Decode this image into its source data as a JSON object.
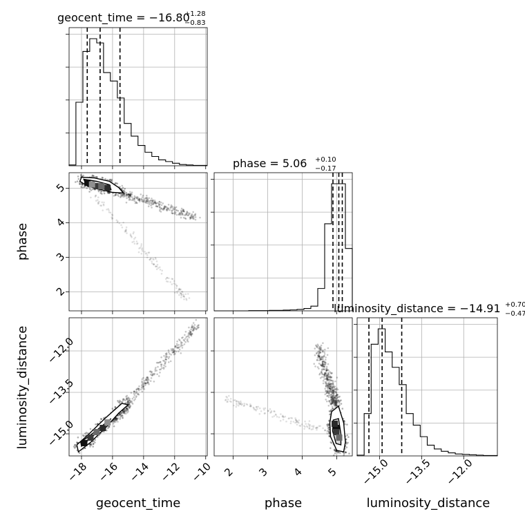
{
  "chart_data": {
    "type": "corner",
    "parameters": [
      "geocent_time",
      "phase",
      "luminosity_distance"
    ],
    "titles": [
      {
        "param": "geocent_time",
        "text": "geocent_time = −16.80",
        "plus": "+1.28",
        "minus": "−0.83"
      },
      {
        "param": "phase",
        "text": "phase = 5.06",
        "plus": "+0.10",
        "minus": "−0.17"
      },
      {
        "param": "luminosity_distance",
        "text": "luminosity_distance = −14.91",
        "plus": "+0.70",
        "minus": "−0.47"
      }
    ],
    "axis_labels": {
      "x": [
        "geocent_time",
        "phase",
        "luminosity_distance"
      ],
      "y": [
        "phase",
        "luminosity_distance"
      ]
    },
    "ranges": {
      "geocent_time": [
        -18.8,
        -9.9
      ],
      "phase": [
        1.45,
        5.45
      ],
      "luminosity_distance": [
        -15.8,
        -10.8
      ]
    },
    "ticks": {
      "geocent_time": [
        "−18",
        "−16",
        "−14",
        "−12",
        "−10"
      ],
      "phase_x": [
        "2",
        "3",
        "4",
        "5"
      ],
      "phase_y": [
        "2",
        "3",
        "4",
        "5"
      ],
      "luminosity_distance_x": [
        "−15.0",
        "−13.5",
        "−12.0"
      ],
      "luminosity_distance_y": [
        "−12.0",
        "−13.5",
        "−15.0"
      ]
    },
    "tick_values": {
      "geocent_time": [
        -18,
        -16,
        -14,
        -12,
        -10
      ],
      "phase": [
        2,
        3,
        4,
        5
      ],
      "luminosity_distance": [
        -15.0,
        -13.5,
        -12.0
      ]
    },
    "quantiles": {
      "geocent_time": [
        -17.63,
        -16.8,
        -15.52
      ],
      "phase": [
        4.89,
        5.06,
        5.16
      ],
      "luminosity_distance": [
        -15.38,
        -14.91,
        -14.21
      ]
    },
    "histograms": {
      "geocent_time": {
        "edges": [
          -18.8,
          -18.36,
          -17.91,
          -17.47,
          -17.02,
          -16.58,
          -16.14,
          -15.69,
          -15.25,
          -14.8,
          -14.36,
          -13.91,
          -13.47,
          -13.03,
          -12.58,
          -12.14,
          -11.69,
          -11.25,
          -10.81,
          -10.36,
          -9.92
        ],
        "counts": [
          2,
          150,
          270,
          300,
          290,
          220,
          200,
          160,
          100,
          70,
          48,
          32,
          22,
          14,
          10,
          6,
          3,
          2,
          1,
          1
        ]
      },
      "phase": {
        "edges": [
          1.45,
          1.65,
          1.85,
          2.05,
          2.25,
          2.45,
          2.65,
          2.85,
          3.05,
          3.25,
          3.45,
          3.65,
          3.85,
          4.05,
          4.25,
          4.45,
          4.65,
          4.85,
          5.05,
          5.25,
          5.45
        ],
        "counts": [
          0,
          0,
          0,
          0,
          0,
          1,
          1,
          1,
          2,
          2,
          3,
          4,
          6,
          10,
          20,
          95,
          370,
          540,
          540,
          265
        ]
      },
      "luminosity_distance": {
        "edges": [
          -15.8,
          -15.55,
          -15.3,
          -15.05,
          -14.8,
          -14.55,
          -14.3,
          -14.05,
          -13.8,
          -13.55,
          -13.3,
          -13.05,
          -12.8,
          -12.55,
          -12.3,
          -12.05,
          -11.8,
          -11.55,
          -11.3,
          -11.05,
          -10.8
        ],
        "counts": [
          2,
          110,
          290,
          330,
          270,
          230,
          185,
          110,
          80,
          50,
          28,
          18,
          12,
          8,
          5,
          4,
          3,
          2,
          1,
          1
        ]
      }
    },
    "density_2d": [
      {
        "x": "geocent_time",
        "y": "phase",
        "core": [
          [
            -17.6,
            5.15
          ],
          [
            -17.0,
            5.05
          ],
          [
            -16.7,
            5.05
          ],
          [
            -16.3,
            5.0
          ],
          [
            -17.3,
            5.1
          ]
        ],
        "contour_outer": [
          [
            -18.0,
            5.32
          ],
          [
            -17.2,
            5.3
          ],
          [
            -16.2,
            5.2
          ],
          [
            -15.6,
            5.02
          ],
          [
            -15.3,
            4.86
          ],
          [
            -16.0,
            4.88
          ],
          [
            -16.9,
            4.98
          ],
          [
            -17.6,
            5.06
          ],
          [
            -18.1,
            5.2
          ]
        ],
        "contour_inner": [
          [
            -17.85,
            5.26
          ],
          [
            -17.0,
            5.2
          ],
          [
            -16.2,
            5.1
          ],
          [
            -16.1,
            4.96
          ],
          [
            -16.9,
            5.0
          ],
          [
            -17.7,
            5.1
          ]
        ],
        "tail": {
          "from": [
            -17.0,
            5.1
          ],
          "to": [
            -10.6,
            4.15
          ]
        },
        "tail2": {
          "from": [
            -17.2,
            4.8
          ],
          "to": [
            -11.2,
            1.75
          ]
        }
      },
      {
        "x": "geocent_time",
        "y": "luminosity_distance",
        "core": [
          [
            -17.8,
            -15.35
          ],
          [
            -17.4,
            -15.15
          ],
          [
            -17.0,
            -14.95
          ],
          [
            -16.6,
            -14.8
          ],
          [
            -16.3,
            -14.6
          ]
        ],
        "contour_outer": [
          [
            -18.2,
            -15.65
          ],
          [
            -17.4,
            -15.3
          ],
          [
            -16.4,
            -14.75
          ],
          [
            -15.6,
            -14.25
          ],
          [
            -15.0,
            -13.95
          ],
          [
            -15.4,
            -13.9
          ],
          [
            -16.5,
            -14.45
          ],
          [
            -17.6,
            -15.05
          ],
          [
            -18.3,
            -15.4
          ]
        ],
        "contour_inner": [
          [
            -18.0,
            -15.45
          ],
          [
            -17.2,
            -15.05
          ],
          [
            -16.3,
            -14.6
          ],
          [
            -16.1,
            -14.45
          ],
          [
            -17.2,
            -14.95
          ],
          [
            -18.05,
            -15.3
          ]
        ],
        "tail": {
          "from": [
            -16.0,
            -14.5
          ],
          "to": [
            -10.5,
            -11.0
          ]
        }
      },
      {
        "x": "phase",
        "y": "luminosity_distance",
        "core": [
          [
            5.0,
            -14.8
          ],
          [
            5.0,
            -14.95
          ],
          [
            5.08,
            -15.15
          ],
          [
            4.95,
            -14.65
          ]
        ],
        "contour_outer": [
          [
            4.85,
            -14.2
          ],
          [
            5.05,
            -14.0
          ],
          [
            5.2,
            -14.6
          ],
          [
            5.25,
            -15.3
          ],
          [
            5.2,
            -15.65
          ],
          [
            5.0,
            -15.6
          ],
          [
            4.82,
            -15.1
          ],
          [
            4.8,
            -14.6
          ]
        ],
        "contour_inner": [
          [
            4.9,
            -14.5
          ],
          [
            5.05,
            -14.45
          ],
          [
            5.12,
            -15.0
          ],
          [
            5.12,
            -15.4
          ],
          [
            4.98,
            -15.35
          ],
          [
            4.88,
            -14.9
          ]
        ],
        "tail": {
          "from": [
            4.95,
            -13.9
          ],
          "to": [
            4.45,
            -11.8
          ]
        },
        "tail2": {
          "from": [
            4.9,
            -15.0
          ],
          "to": [
            1.7,
            -13.7
          ]
        }
      }
    ]
  }
}
